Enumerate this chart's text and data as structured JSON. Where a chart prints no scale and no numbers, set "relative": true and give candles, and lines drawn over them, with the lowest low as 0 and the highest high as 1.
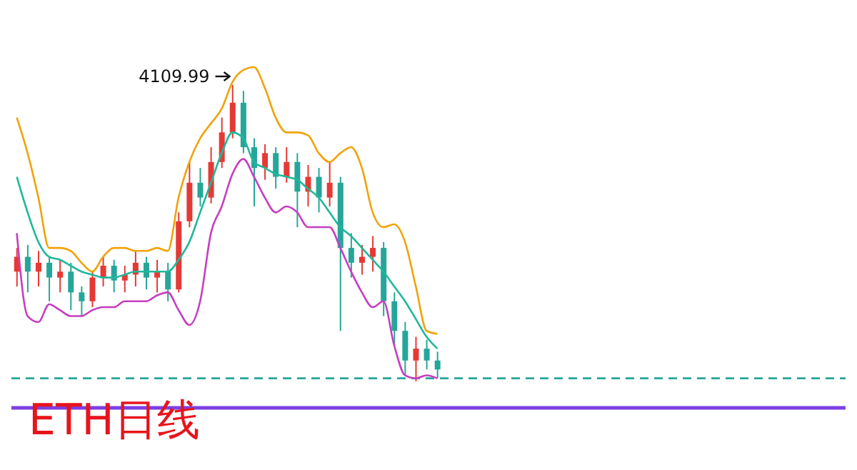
{
  "chart_data": {
    "type": "candlestick",
    "title": "ETH日线",
    "relative": true,
    "categories": [
      null,
      null,
      null,
      null,
      null,
      null,
      null,
      null,
      null,
      null,
      null,
      null,
      null,
      null,
      null,
      null,
      null,
      null,
      null,
      null,
      null,
      null,
      null,
      null,
      null,
      null,
      null,
      null,
      null,
      null,
      null,
      null,
      null,
      null,
      null,
      null,
      null,
      null,
      null,
      null
    ],
    "ohlc": [
      [
        0.37,
        0.45,
        0.32,
        0.42
      ],
      [
        0.42,
        0.46,
        0.3,
        0.37
      ],
      [
        0.37,
        0.44,
        0.32,
        0.4
      ],
      [
        0.4,
        0.42,
        0.27,
        0.35
      ],
      [
        0.35,
        0.41,
        0.3,
        0.37
      ],
      [
        0.37,
        0.4,
        0.24,
        0.3
      ],
      [
        0.3,
        0.32,
        0.22,
        0.27
      ],
      [
        0.27,
        0.37,
        0.25,
        0.35
      ],
      [
        0.35,
        0.42,
        0.32,
        0.39
      ],
      [
        0.39,
        0.41,
        0.3,
        0.34
      ],
      [
        0.34,
        0.39,
        0.3,
        0.36
      ],
      [
        0.36,
        0.44,
        0.32,
        0.4
      ],
      [
        0.4,
        0.42,
        0.31,
        0.35
      ],
      [
        0.35,
        0.41,
        0.3,
        0.37
      ],
      [
        0.37,
        0.4,
        0.27,
        0.31
      ],
      [
        0.31,
        0.57,
        0.3,
        0.54
      ],
      [
        0.54,
        0.74,
        0.52,
        0.67
      ],
      [
        0.67,
        0.72,
        0.59,
        0.62
      ],
      [
        0.62,
        0.79,
        0.6,
        0.74
      ],
      [
        0.74,
        0.89,
        0.72,
        0.84
      ],
      [
        0.84,
        1,
        0.82,
        0.94
      ],
      [
        0.94,
        0.98,
        0.77,
        0.79
      ],
      [
        0.79,
        0.82,
        0.59,
        0.72
      ],
      [
        0.72,
        0.8,
        0.68,
        0.77
      ],
      [
        0.77,
        0.79,
        0.65,
        0.69
      ],
      [
        0.69,
        0.79,
        0.67,
        0.74
      ],
      [
        0.74,
        0.77,
        0.52,
        0.64
      ],
      [
        0.64,
        0.73,
        0.59,
        0.69
      ],
      [
        0.69,
        0.72,
        0.57,
        0.62
      ],
      [
        0.62,
        0.74,
        0.59,
        0.67
      ],
      [
        0.67,
        0.69,
        0.17,
        0.45
      ],
      [
        0.45,
        0.5,
        0.35,
        0.4
      ],
      [
        0.4,
        0.46,
        0.36,
        0.42
      ],
      [
        0.42,
        0.49,
        0.37,
        0.45
      ],
      [
        0.45,
        0.47,
        0.22,
        0.27
      ],
      [
        0.27,
        0.3,
        0.12,
        0.17
      ],
      [
        0.17,
        0.2,
        0.02,
        0.07
      ],
      [
        0.07,
        0.15,
        0,
        0.11
      ],
      [
        0.11,
        0.14,
        0.04,
        0.07
      ],
      [
        0.07,
        0.1,
        0.01,
        0.04
      ]
    ],
    "colors": [
      "#e53935",
      "#26a69a",
      "#e53935",
      "#26a69a",
      "#e53935",
      "#26a69a",
      "#26a69a",
      "#e53935",
      "#e53935",
      "#26a69a",
      "#e53935",
      "#e53935",
      "#26a69a",
      "#e53935",
      "#26a69a",
      "#e53935",
      "#e53935",
      "#26a69a",
      "#e53935",
      "#e53935",
      "#e53935",
      "#26a69a",
      "#26a69a",
      "#e53935",
      "#26a69a",
      "#e53935",
      "#26a69a",
      "#e53935",
      "#26a69a",
      "#e53935",
      "#26a69a",
      "#26a69a",
      "#e53935",
      "#e53935",
      "#26a69a",
      "#26a69a",
      "#26a69a",
      "#e53935",
      "#26a69a",
      "#26a69a"
    ],
    "series": [
      {
        "type": "line",
        "color": "#f0a30a",
        "values": [
          0.89,
          0.77,
          0.62,
          0.45,
          0.45,
          0.44,
          0.4,
          0.37,
          0.42,
          0.45,
          0.45,
          0.44,
          0.44,
          0.45,
          0.44,
          0.62,
          0.74,
          0.82,
          0.87,
          0.92,
          1.01,
          1.05,
          1.06,
          0.99,
          0.89,
          0.84,
          0.84,
          0.83,
          0.77,
          0.74,
          0.77,
          0.79,
          0.72,
          0.57,
          0.52,
          0.53,
          0.47,
          0.32,
          0.17,
          0.16
        ]
      },
      {
        "type": "line",
        "color": "#1fb89a",
        "values": [
          0.69,
          0.57,
          0.47,
          0.42,
          0.41,
          0.39,
          0.37,
          0.36,
          0.35,
          0.35,
          0.36,
          0.37,
          0.37,
          0.37,
          0.37,
          0.41,
          0.47,
          0.57,
          0.67,
          0.77,
          0.84,
          0.82,
          0.74,
          0.72,
          0.7,
          0.69,
          0.68,
          0.65,
          0.62,
          0.57,
          0.52,
          0.49,
          0.45,
          0.41,
          0.37,
          0.32,
          0.27,
          0.21,
          0.15,
          0.11
        ]
      },
      {
        "type": "line",
        "color": "#c63ec0",
        "values": [
          0.5,
          0.22,
          0.2,
          0.26,
          0.24,
          0.22,
          0.22,
          0.24,
          0.25,
          0.25,
          0.27,
          0.27,
          0.27,
          0.29,
          0.3,
          0.24,
          0.19,
          0.27,
          0.5,
          0.59,
          0.7,
          0.75,
          0.69,
          0.62,
          0.57,
          0.59,
          0.57,
          0.52,
          0.52,
          0.52,
          0.45,
          0.37,
          0.3,
          0.25,
          0.27,
          0.12,
          0.02,
          0.01,
          0.02,
          0.01
        ]
      }
    ],
    "ref_lines": [
      {
        "axis": "y",
        "value": 0.01,
        "color": "#26a69a",
        "line_style": "dashed"
      },
      {
        "axis": "y",
        "value": -0.09,
        "color": "#7b3fe4",
        "line_style": "solid"
      }
    ],
    "annotations": [
      "4109.99"
    ]
  }
}
